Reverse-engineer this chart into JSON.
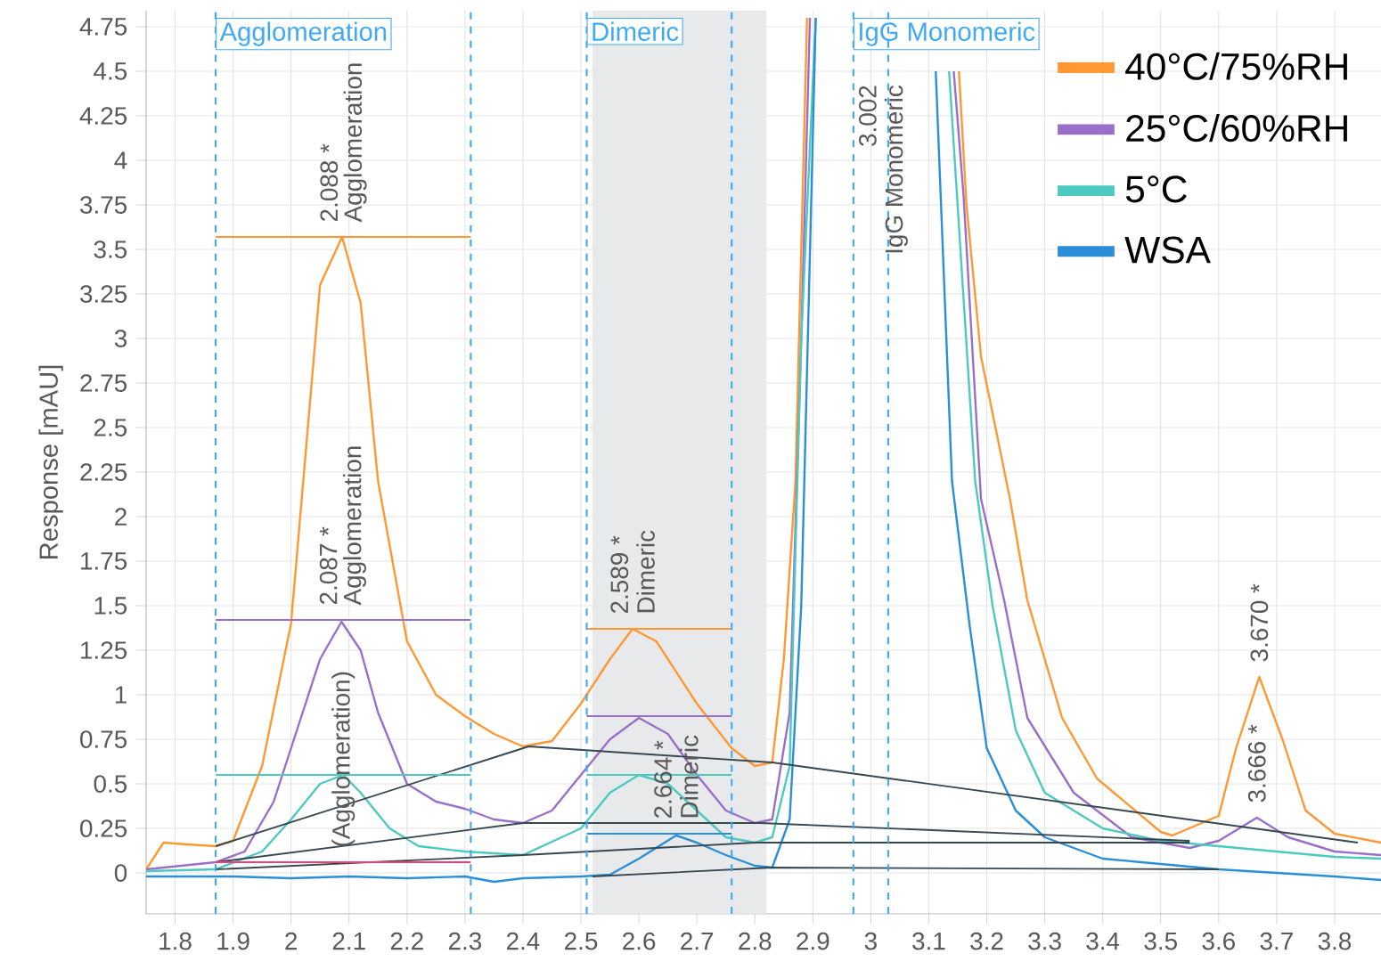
{
  "chart_data": {
    "type": "line",
    "ylabel": "Response [mAU]",
    "xlim": [
      1.75,
      3.88
    ],
    "ylim": [
      -0.23,
      4.84
    ],
    "xticks": [
      1.8,
      1.9,
      2,
      2.1,
      2.2,
      2.3,
      2.4,
      2.5,
      2.6,
      2.7,
      2.8,
      2.9,
      3,
      3.1,
      3.2,
      3.3,
      3.4,
      3.5,
      3.6,
      3.7,
      3.8
    ],
    "yticks": [
      0,
      0.25,
      0.5,
      0.75,
      1,
      1.25,
      1.5,
      1.75,
      2,
      2.25,
      2.5,
      2.75,
      3,
      3.25,
      3.5,
      3.75,
      4,
      4.25,
      4.5,
      4.75
    ],
    "grid": true,
    "legend": "top right",
    "series": [
      {
        "name": "40°C/75%RH",
        "color": "#ff9833",
        "x": [
          1.75,
          1.78,
          1.82,
          1.87,
          1.9,
          1.95,
          2.0,
          2.05,
          2.088,
          2.12,
          2.15,
          2.2,
          2.25,
          2.3,
          2.35,
          2.4,
          2.45,
          2.5,
          2.55,
          2.589,
          2.63,
          2.7,
          2.76,
          2.8,
          2.83,
          2.85,
          2.87,
          2.89,
          3.0,
          3.152,
          3.165,
          3.19,
          3.24,
          3.27,
          3.33,
          3.39,
          3.5,
          3.52,
          3.6,
          3.63,
          3.67,
          3.71,
          3.75,
          3.8,
          3.88
        ],
        "values": [
          0.02,
          0.17,
          0.16,
          0.15,
          0.18,
          0.6,
          1.4,
          3.3,
          3.57,
          3.2,
          2.2,
          1.3,
          1.0,
          0.88,
          0.78,
          0.71,
          0.74,
          0.95,
          1.2,
          1.37,
          1.3,
          0.95,
          0.7,
          0.6,
          0.62,
          1.2,
          2.2,
          4.8,
          null,
          4.5,
          3.75,
          2.9,
          2.1,
          1.53,
          0.87,
          0.53,
          0.23,
          0.21,
          0.32,
          0.7,
          1.1,
          0.75,
          0.35,
          0.22,
          0.17
        ]
      },
      {
        "name": "25°C/60%RH",
        "color": "#9a6fc9",
        "x": [
          1.75,
          1.87,
          1.92,
          1.97,
          2.02,
          2.05,
          2.087,
          2.12,
          2.15,
          2.2,
          2.25,
          2.3,
          2.35,
          2.4,
          2.45,
          2.5,
          2.55,
          2.6,
          2.65,
          2.7,
          2.75,
          2.8,
          2.83,
          2.86,
          2.88,
          2.895,
          3.0,
          3.143,
          3.16,
          3.19,
          3.23,
          3.27,
          3.35,
          3.45,
          3.55,
          3.6,
          3.666,
          3.72,
          3.8,
          3.88
        ],
        "values": [
          0.02,
          0.06,
          0.12,
          0.4,
          0.9,
          1.2,
          1.41,
          1.25,
          0.9,
          0.5,
          0.4,
          0.36,
          0.3,
          0.28,
          0.35,
          0.55,
          0.75,
          0.87,
          0.78,
          0.55,
          0.35,
          0.28,
          0.3,
          0.9,
          3.0,
          4.8,
          null,
          4.5,
          3.8,
          2.1,
          1.53,
          0.87,
          0.45,
          0.2,
          0.14,
          0.18,
          0.31,
          0.2,
          0.12,
          0.1
        ]
      },
      {
        "name": "5°C",
        "color": "#4cc9c0",
        "x": [
          1.75,
          1.87,
          1.95,
          2.0,
          2.05,
          2.09,
          2.12,
          2.17,
          2.22,
          2.3,
          2.4,
          2.5,
          2.55,
          2.6,
          2.65,
          2.7,
          2.75,
          2.8,
          2.83,
          2.86,
          2.88,
          2.905,
          3.0,
          3.135,
          3.18,
          3.21,
          3.25,
          3.3,
          3.4,
          3.5,
          3.6,
          3.7,
          3.8,
          3.88
        ],
        "values": [
          0.01,
          0.02,
          0.12,
          0.3,
          0.5,
          0.55,
          0.45,
          0.25,
          0.15,
          0.12,
          0.1,
          0.25,
          0.45,
          0.55,
          0.5,
          0.35,
          0.2,
          0.17,
          0.2,
          0.6,
          3.0,
          4.8,
          null,
          4.5,
          2.2,
          1.5,
          0.8,
          0.45,
          0.25,
          0.18,
          0.15,
          0.12,
          0.09,
          0.08
        ]
      },
      {
        "name": "WSA",
        "color": "#2a8fd8",
        "x": [
          1.75,
          1.9,
          2.0,
          2.1,
          2.2,
          2.3,
          2.35,
          2.4,
          2.5,
          2.55,
          2.6,
          2.664,
          2.7,
          2.75,
          2.8,
          2.83,
          2.86,
          2.88,
          2.905,
          3.0,
          3.112,
          3.14,
          3.17,
          3.2,
          3.25,
          3.3,
          3.4,
          3.5,
          3.6,
          3.7,
          3.8,
          3.88
        ],
        "values": [
          -0.02,
          -0.02,
          -0.03,
          -0.02,
          -0.03,
          -0.02,
          -0.05,
          -0.03,
          -0.02,
          -0.01,
          0.08,
          0.21,
          0.17,
          0.1,
          0.04,
          0.03,
          0.3,
          1.5,
          4.8,
          null,
          4.5,
          2.2,
          1.4,
          0.7,
          0.35,
          0.2,
          0.08,
          0.05,
          0.02,
          0.0,
          -0.02,
          -0.04
        ]
      },
      {
        "color": "#37474f",
        "x": [
          1.87,
          2.41,
          2.83,
          3.84
        ],
        "values": [
          0.15,
          0.71,
          0.62,
          0.17
        ]
      },
      {
        "color": "#37474f",
        "x": [
          1.87,
          2.4,
          2.81,
          3.55
        ],
        "values": [
          0.06,
          0.28,
          0.28,
          0.18
        ]
      },
      {
        "color": "#37474f",
        "x": [
          1.87,
          2.4,
          2.8,
          3.55
        ],
        "values": [
          0.02,
          0.1,
          0.17,
          0.17
        ]
      },
      {
        "color": "#37474f",
        "x": [
          2.52,
          2.83,
          3.6
        ],
        "values": [
          -0.02,
          0.03,
          0.02
        ]
      },
      {
        "color": "#f0407a",
        "x": [
          1.87,
          2.31
        ],
        "values": [
          0.06,
          0.06
        ]
      },
      {
        "color": "#ff9833",
        "x": [
          1.87,
          2.31
        ],
        "values": [
          3.57,
          3.57
        ]
      },
      {
        "color": "#9a6fc9",
        "x": [
          1.87,
          2.31
        ],
        "values": [
          1.42,
          1.42
        ]
      },
      {
        "color": "#4cc9c0",
        "x": [
          1.87,
          2.31
        ],
        "values": [
          0.55,
          0.55
        ]
      },
      {
        "color": "#ff9833",
        "x": [
          2.51,
          2.76
        ],
        "values": [
          1.37,
          1.37
        ]
      },
      {
        "color": "#9a6fc9",
        "x": [
          2.51,
          2.76
        ],
        "values": [
          0.88,
          0.88
        ]
      },
      {
        "color": "#4cc9c0",
        "x": [
          2.51,
          2.76
        ],
        "values": [
          0.55,
          0.55
        ]
      },
      {
        "color": "#2a8fd8",
        "x": [
          2.51,
          2.76
        ],
        "values": [
          0.22,
          0.22
        ]
      }
    ],
    "bands": [
      {
        "axis": "x",
        "from": 2.52,
        "to": 2.82,
        "color": "#e8e9eb"
      }
    ],
    "ref_lines": [
      {
        "axis": "x",
        "value": 1.87,
        "label": "Agglomeration",
        "color": "#3fa9f5",
        "line_style": "dashed"
      },
      {
        "axis": "x",
        "value": 2.31,
        "color": "#3fa9f5",
        "line_style": "dashed"
      },
      {
        "axis": "x",
        "value": 2.51,
        "label": "Dimeric",
        "color": "#3fa9f5",
        "line_style": "dashed"
      },
      {
        "axis": "x",
        "value": 2.76,
        "color": "#3fa9f5",
        "line_style": "dashed"
      },
      {
        "axis": "x",
        "value": 2.97,
        "label": "IgG Monomeric",
        "color": "#3fa9f5",
        "line_style": "dashed"
      },
      {
        "axis": "x",
        "value": 3.03,
        "color": "#3fa9f5",
        "line_style": "dashed"
      }
    ],
    "annotations": [
      {
        "text": "2.088 *",
        "x": 2.088,
        "y": 3.57
      },
      {
        "text": "Agglomeration",
        "x": 2.088,
        "y": 3.57
      },
      {
        "text": "2.087 *",
        "x": 2.087,
        "y": 1.42
      },
      {
        "text": "Agglomeration",
        "x": 2.087,
        "y": 1.42
      },
      {
        "text": "(Agglomeration)",
        "x": 2.09,
        "y": 0.06
      },
      {
        "text": "2.589 *",
        "x": 2.589,
        "y": 1.37
      },
      {
        "text": "Dimeric",
        "x": 2.589,
        "y": 1.37
      },
      {
        "text": "2.664 *",
        "x": 2.664,
        "y": 0.22
      },
      {
        "text": "Dimeric",
        "x": 2.664,
        "y": 0.22
      },
      "3.002",
      "IgG Monomeric",
      {
        "text": "3.670 *",
        "x": 3.67,
        "y": 1.1
      },
      {
        "text": "3.666 *",
        "x": 3.666,
        "y": 0.31
      }
    ]
  }
}
